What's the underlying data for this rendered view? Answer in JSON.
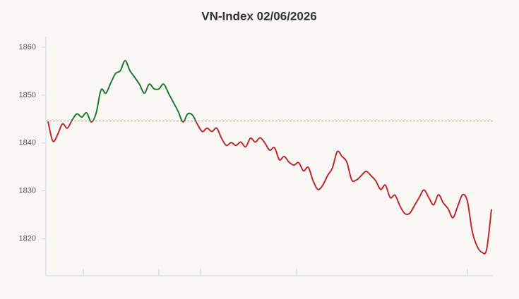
{
  "chart_data": {
    "type": "line",
    "title": "VN-Index 02/06/2026",
    "values": [
      1844.5,
      1840.4,
      1841.8,
      1844,
      1843.1,
      1844.8,
      1846.1,
      1845.4,
      1846.3,
      1844.4,
      1846.3,
      1851.1,
      1850.4,
      1852.5,
      1854.5,
      1855.1,
      1857.2,
      1855.1,
      1853.7,
      1852.2,
      1850.4,
      1852.3,
      1851.3,
      1851.3,
      1852.3,
      1850.4,
      1848.5,
      1846.6,
      1844.4,
      1846.1,
      1845.8,
      1843.9,
      1842.4,
      1843.1,
      1842.4,
      1843.1,
      1841,
      1839.5,
      1840.1,
      1839.5,
      1840.2,
      1839.2,
      1841,
      1840.2,
      1841.1,
      1840,
      1838.5,
      1839,
      1836.5,
      1837.2,
      1836,
      1835.4,
      1835.9,
      1834.2,
      1834.9,
      1832.1,
      1830.3,
      1831.2,
      1833.2,
      1834.8,
      1838.2,
      1837.2,
      1836,
      1832.3,
      1832.3,
      1833.2,
      1834.1,
      1833.2,
      1832.1,
      1830.3,
      1831.2,
      1828.6,
      1829.1,
      1826.9,
      1825.3,
      1825.3,
      1826.9,
      1828.6,
      1830.2,
      1828.6,
      1827.1,
      1829.2,
      1827.5,
      1826.3,
      1824.4,
      1826.8,
      1829.2,
      1827.9,
      1821.6,
      1818.5,
      1817.2,
      1817.8,
      1826.2
    ],
    "reference": 1844.6,
    "color_up": "#1e7a2f",
    "color_down": "#c1272d",
    "reference_color": "#d9a02a",
    "ylim": [
      1812.3,
      1862.2
    ],
    "yticks": [
      1820,
      1830,
      1840,
      1850,
      1860
    ],
    "grid": false
  }
}
